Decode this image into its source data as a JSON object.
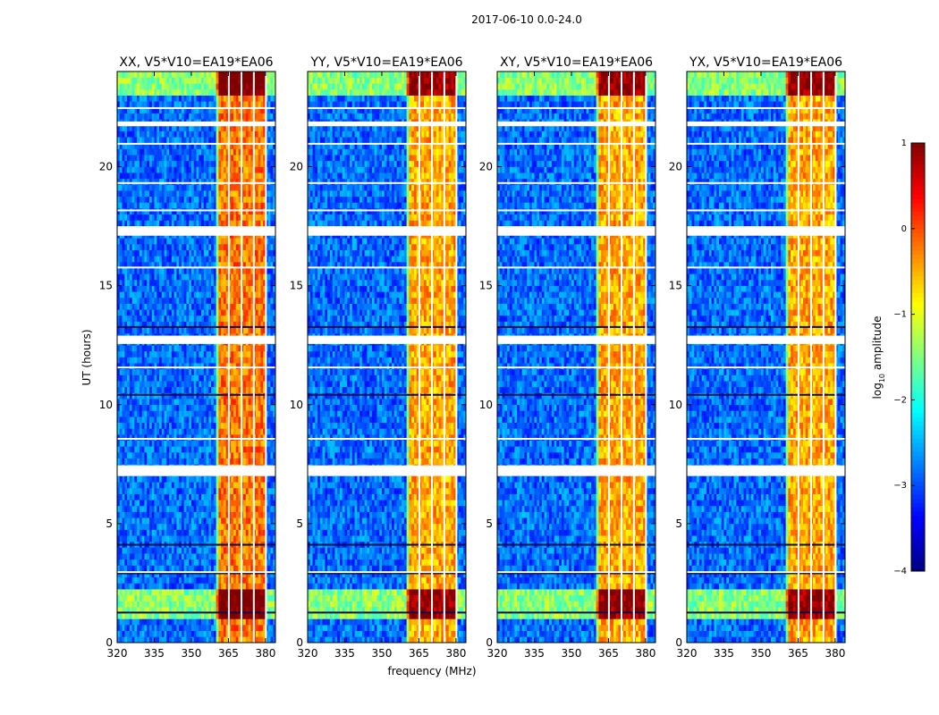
{
  "chart_data": {
    "type": "heatmap",
    "suptitle": "2017-06-10 0.0-24.0",
    "xlabel": "frequency (MHz)",
    "ylabel": "UT (hours)",
    "xlim": [
      320,
      384
    ],
    "ylim": [
      0,
      24
    ],
    "xticks": [
      320,
      335,
      350,
      365,
      380
    ],
    "yticks": [
      0,
      5,
      10,
      15,
      20
    ],
    "panels": [
      {
        "title": "XX, V5*V10=EA19*EA06",
        "band_offset": 0
      },
      {
        "title": "YY, V5*V10=EA19*EA06",
        "band_offset": 0
      },
      {
        "title": "XY, V5*V10=EA19*EA06",
        "band_offset": 0
      },
      {
        "title": "YX, V5*V10=EA19*EA06",
        "band_offset": 0
      }
    ],
    "strong_band_mhz": [
      [
        361,
        364.5
      ],
      [
        365.5,
        369.5
      ],
      [
        370.5,
        374.5
      ],
      [
        375.5,
        379.5
      ]
    ],
    "active_band_mhz": [
      360,
      380
    ],
    "flagged_ut_hours": [
      [
        7.0,
        7.45
      ],
      [
        12.55,
        12.9
      ],
      [
        17.1,
        17.5
      ],
      [
        21.7,
        21.9
      ]
    ],
    "hot_ut_hours": [
      [
        1.0,
        2.2
      ],
      [
        23.1,
        24.0
      ]
    ],
    "colorbar": {
      "label": "log",
      "label_sub": "10",
      "label_suffix": " amplitude",
      "min": -4,
      "max": 1,
      "ticks": [
        "1",
        "0",
        "−1",
        "−2",
        "−3",
        "−4"
      ],
      "tick_values": [
        1,
        0,
        -1,
        -2,
        -3,
        -4
      ],
      "colormap": "jet"
    }
  }
}
